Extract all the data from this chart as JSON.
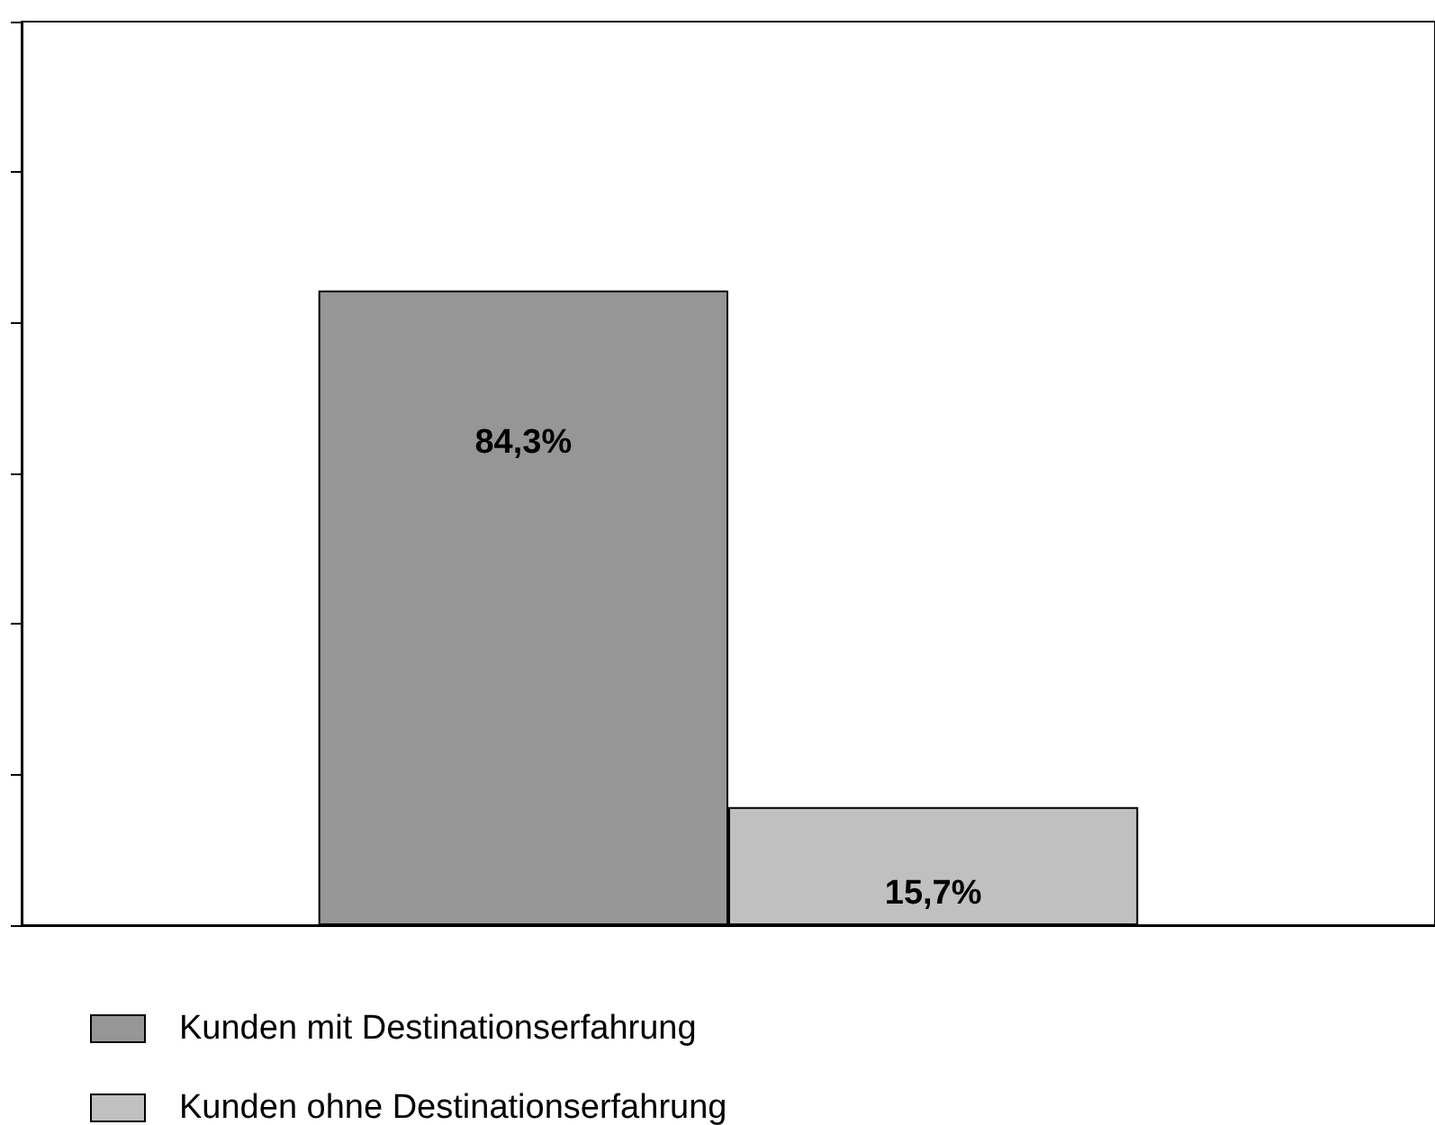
{
  "chart_data": {
    "type": "bar",
    "categories": [
      null
    ],
    "series": [
      {
        "name": "Kunden mit Destinationserfahrung",
        "color": "#969696",
        "values": [
          84.3
        ],
        "value_labels": [
          "84,3%"
        ]
      },
      {
        "name": "Kunden ohne Destinationserfahrung",
        "color": "#c0c0c0",
        "values": [
          15.7
        ],
        "value_labels": [
          "15,7%"
        ]
      }
    ],
    "ylim": [
      0,
      120
    ],
    "yticks": [
      {
        "value": 0,
        "label": null
      },
      {
        "value": 20,
        "label": null
      },
      {
        "value": 40,
        "label": null
      },
      {
        "value": 60,
        "label": null
      },
      {
        "value": 80,
        "label": null
      },
      {
        "value": 100,
        "label": null
      },
      {
        "value": 120,
        "label": null
      }
    ],
    "grid": false,
    "legend": "bottom left"
  }
}
